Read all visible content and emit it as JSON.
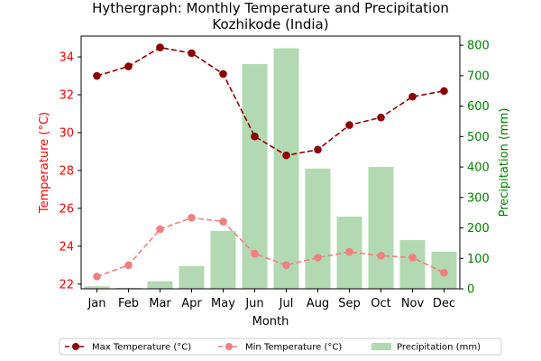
{
  "chart_data": {
    "type": "bar+line",
    "title": "Hythergraph: Monthly Temperature and Precipitation\nKozhikode (India)",
    "xlabel": "Month",
    "ylabel_left": "Temperature (°C)",
    "ylabel_right": "Precipitation (mm)",
    "categories": [
      "Jan",
      "Feb",
      "Mar",
      "Apr",
      "May",
      "Jun",
      "Jul",
      "Aug",
      "Sep",
      "Oct",
      "Nov",
      "Dec"
    ],
    "ylim_left": [
      21.75,
      35.1
    ],
    "ylim_right": [
      0,
      830
    ],
    "yticks_left": [
      22,
      24,
      26,
      28,
      30,
      32,
      34
    ],
    "yticks_right": [
      0,
      100,
      200,
      300,
      400,
      500,
      600,
      700,
      800
    ],
    "series": [
      {
        "name": "Max Temperature (°C)",
        "type": "line",
        "axis": "left",
        "style": "dashed",
        "marker": "circle",
        "color": "#8b0000",
        "values": [
          33.0,
          33.5,
          34.5,
          34.2,
          33.1,
          29.8,
          28.8,
          29.1,
          30.4,
          30.8,
          31.9,
          32.2
        ]
      },
      {
        "name": "Min Temperature (°C)",
        "type": "line",
        "axis": "left",
        "style": "dashed",
        "marker": "circle",
        "color": "#f08080",
        "values": [
          22.4,
          23.0,
          24.9,
          25.5,
          25.3,
          23.6,
          23.0,
          23.4,
          23.7,
          23.5,
          23.4,
          22.6
        ]
      },
      {
        "name": "Precipitation (mm)",
        "type": "bar",
        "axis": "right",
        "color": "#b2d9b2",
        "values": [
          8,
          3,
          25,
          75,
          190,
          738,
          790,
          395,
          237,
          400,
          160,
          122
        ]
      }
    ],
    "legend_position": "bottom-center",
    "grid": false,
    "colors": {
      "left_axis": "#ff0000",
      "right_axis": "#008000"
    }
  }
}
